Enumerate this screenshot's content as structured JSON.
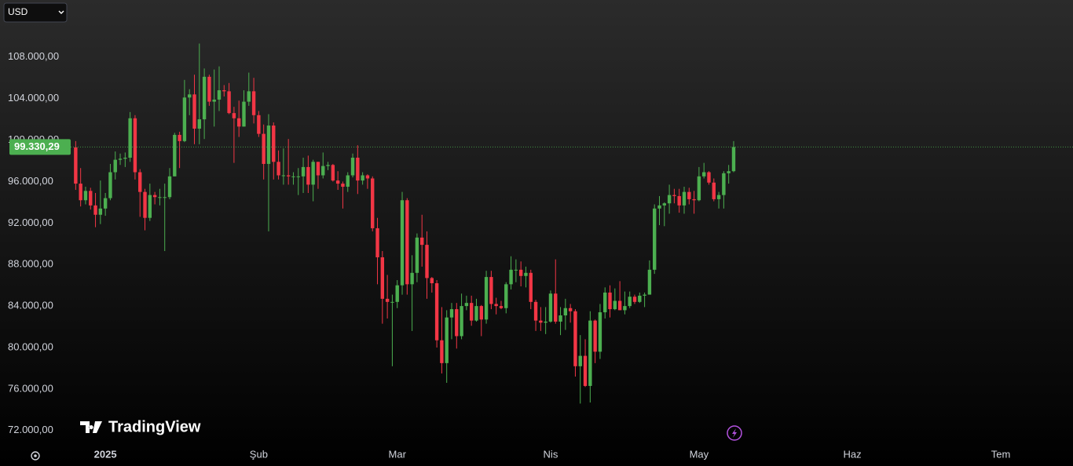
{
  "chart_data": {
    "type": "candlestick",
    "currency": "USD",
    "brand": "TradingView",
    "up_color": "#4caf50",
    "down_color": "#f23645",
    "xlim": [
      -21.3,
      195.6
    ],
    "xticks": [
      {
        "value": 0,
        "label": "2025"
      },
      {
        "value": 31,
        "label": "Şub"
      },
      {
        "value": 59,
        "label": "Mar"
      },
      {
        "value": 90,
        "label": "Nis"
      },
      {
        "value": 120,
        "label": "May"
      },
      {
        "value": 151,
        "label": "Haz"
      },
      {
        "value": 181,
        "label": "Tem"
      }
    ],
    "ylim": [
      70700,
      113500
    ],
    "yticks": [
      {
        "value": 72000,
        "label": "72.000,00"
      },
      {
        "value": 76000,
        "label": "76.000,00"
      },
      {
        "value": 80000,
        "label": "80.000,00"
      },
      {
        "value": 84000,
        "label": "84.000,00"
      },
      {
        "value": 88000,
        "label": "88.000,00"
      },
      {
        "value": 92000,
        "label": "92.000,00"
      },
      {
        "value": 96000,
        "label": "96.000,00"
      },
      {
        "value": 100000,
        "label": "100.000,00"
      },
      {
        "value": 104000,
        "label": "104.000,00"
      },
      {
        "value": 108000,
        "label": "108.000,00"
      }
    ],
    "last_price": 99330.29,
    "last_price_label": "99.330,29",
    "x": [
      -6,
      -5,
      -4,
      -3,
      -2,
      -1,
      0,
      1,
      2,
      3,
      4,
      5,
      6,
      7,
      8,
      9,
      10,
      11,
      12,
      13,
      14,
      15,
      16,
      17,
      18,
      19,
      20,
      21,
      22,
      23,
      24,
      25,
      26,
      27,
      28,
      29,
      30,
      31,
      32,
      33,
      34,
      35,
      36,
      37,
      38,
      39,
      40,
      41,
      42,
      43,
      44,
      45,
      46,
      47,
      48,
      49,
      50,
      51,
      52,
      53,
      54,
      55,
      56,
      57,
      58,
      59,
      60,
      61,
      62,
      63,
      64,
      65,
      66,
      67,
      68,
      69,
      70,
      71,
      72,
      73,
      74,
      75,
      76,
      77,
      78,
      79,
      80,
      81,
      82,
      83,
      84,
      85,
      86,
      87,
      88,
      89,
      90,
      91,
      92,
      93,
      94,
      95,
      96,
      97,
      98,
      99,
      100,
      101,
      102,
      103,
      104,
      105,
      106,
      107,
      108,
      109,
      110,
      111,
      112,
      113,
      114,
      115,
      116,
      117,
      118,
      119,
      120,
      121,
      122,
      123,
      124,
      125,
      126,
      127
    ],
    "ohlc": [
      [
        99300,
        99900,
        95200,
        95800
      ],
      [
        95800,
        97300,
        93600,
        94200
      ],
      [
        94200,
        95500,
        93800,
        95100
      ],
      [
        95100,
        95400,
        93300,
        93700
      ],
      [
        93700,
        94900,
        91600,
        92800
      ],
      [
        92800,
        96100,
        91900,
        93400
      ],
      [
        93400,
        94900,
        92700,
        94400
      ],
      [
        94400,
        97700,
        94200,
        96900
      ],
      [
        96900,
        98900,
        96200,
        98100
      ],
      [
        98100,
        98700,
        97600,
        98200
      ],
      [
        98200,
        98800,
        97400,
        98300
      ],
      [
        98300,
        102700,
        97900,
        102100
      ],
      [
        102100,
        102400,
        96200,
        96900
      ],
      [
        96900,
        97200,
        92600,
        95000
      ],
      [
        95000,
        95300,
        91300,
        92500
      ],
      [
        92500,
        95800,
        92200,
        94700
      ],
      [
        94700,
        95000,
        93800,
        94500
      ],
      [
        94500,
        95300,
        93700,
        94500
      ],
      [
        94500,
        95800,
        89300,
        94500
      ],
      [
        94500,
        97300,
        94300,
        96500
      ],
      [
        96500,
        100700,
        96500,
        100500
      ],
      [
        100500,
        100800,
        97300,
        99900
      ],
      [
        99900,
        105800,
        99800,
        104100
      ],
      [
        104100,
        104900,
        102400,
        104400
      ],
      [
        104400,
        106300,
        99600,
        101100
      ],
      [
        101100,
        109300,
        99600,
        102000
      ],
      [
        102000,
        106900,
        100100,
        106100
      ],
      [
        106100,
        106300,
        103300,
        103700
      ],
      [
        103700,
        106800,
        101300,
        103900
      ],
      [
        103900,
        107100,
        102800,
        104800
      ],
      [
        104800,
        105300,
        104200,
        104700
      ],
      [
        104700,
        105500,
        102500,
        102600
      ],
      [
        102600,
        103200,
        97800,
        102100
      ],
      [
        102100,
        103800,
        100300,
        101300
      ],
      [
        101300,
        104800,
        101300,
        103700
      ],
      [
        103700,
        106500,
        103300,
        104700
      ],
      [
        104700,
        106000,
        101600,
        102400
      ],
      [
        102400,
        102800,
        100300,
        100600
      ],
      [
        100600,
        101500,
        96200,
        97700
      ],
      [
        97700,
        102500,
        91200,
        101400
      ],
      [
        101400,
        101700,
        96200,
        97900
      ],
      [
        97900,
        99000,
        96200,
        96600
      ],
      [
        96600,
        99200,
        95700,
        96600
      ],
      [
        96600,
        100100,
        95700,
        96500
      ],
      [
        96500,
        96900,
        95700,
        96500
      ],
      [
        96500,
        97300,
        94700,
        96500
      ],
      [
        96500,
        98300,
        94900,
        97400
      ],
      [
        97400,
        98500,
        94900,
        95700
      ],
      [
        95700,
        98100,
        94100,
        97900
      ],
      [
        97900,
        97900,
        95300,
        96600
      ],
      [
        96600,
        98800,
        96300,
        97500
      ],
      [
        97500,
        97900,
        97100,
        97600
      ],
      [
        97600,
        97700,
        96000,
        96100
      ],
      [
        96100,
        97000,
        95200,
        95800
      ],
      [
        95800,
        96000,
        93400,
        95500
      ],
      [
        95500,
        96900,
        95000,
        96600
      ],
      [
        96600,
        98700,
        96400,
        98300
      ],
      [
        98300,
        99500,
        94800,
        96100
      ],
      [
        96100,
        96900,
        95700,
        96600
      ],
      [
        96600,
        96700,
        95300,
        96300
      ],
      [
        96300,
        96500,
        91200,
        91500
      ],
      [
        91500,
        92500,
        86100,
        88700
      ],
      [
        88700,
        89300,
        82300,
        84700
      ],
      [
        84700,
        87000,
        82800,
        84400
      ],
      [
        84400,
        85100,
        78200,
        84400
      ],
      [
        84400,
        86500,
        83800,
        86000
      ],
      [
        86000,
        95000,
        85100,
        94200
      ],
      [
        94200,
        94400,
        85100,
        86100
      ],
      [
        86100,
        88900,
        81600,
        87200
      ],
      [
        87200,
        91000,
        86300,
        90600
      ],
      [
        90600,
        92800,
        87800,
        89900
      ],
      [
        89900,
        91200,
        84700,
        86700
      ],
      [
        86700,
        86800,
        85300,
        86200
      ],
      [
        86200,
        86500,
        80000,
        80700
      ],
      [
        80700,
        83900,
        77500,
        78500
      ],
      [
        78500,
        83600,
        76600,
        82900
      ],
      [
        82900,
        84300,
        80800,
        83700
      ],
      [
        83700,
        84300,
        79900,
        81100
      ],
      [
        81100,
        85200,
        80800,
        84000
      ],
      [
        84000,
        85000,
        83600,
        84300
      ],
      [
        84300,
        85000,
        82100,
        82600
      ],
      [
        82600,
        84700,
        82500,
        84000
      ],
      [
        84000,
        84100,
        81100,
        82700
      ],
      [
        82700,
        87400,
        82300,
        86800
      ],
      [
        86800,
        87400,
        83700,
        84200
      ],
      [
        84200,
        84800,
        83200,
        84000
      ],
      [
        84000,
        84500,
        83700,
        83800
      ],
      [
        83800,
        86300,
        83300,
        86100
      ],
      [
        86100,
        88800,
        85600,
        87500
      ],
      [
        87500,
        88500,
        86300,
        87500
      ],
      [
        87500,
        88300,
        85900,
        86900
      ],
      [
        86900,
        87800,
        85800,
        87200
      ],
      [
        87200,
        87500,
        83700,
        84400
      ],
      [
        84400,
        84600,
        81600,
        82600
      ],
      [
        82600,
        83900,
        81600,
        82400
      ],
      [
        82400,
        83900,
        81300,
        82500
      ],
      [
        82500,
        85500,
        82400,
        85200
      ],
      [
        85200,
        88500,
        82300,
        82500
      ],
      [
        82500,
        83900,
        81200,
        83100
      ],
      [
        83100,
        84700,
        81700,
        83800
      ],
      [
        83800,
        84200,
        82400,
        83500
      ],
      [
        83500,
        83700,
        77200,
        78200
      ],
      [
        78200,
        81200,
        74600,
        79200
      ],
      [
        79200,
        80800,
        76200,
        76300
      ],
      [
        76300,
        83500,
        74700,
        82600
      ],
      [
        82600,
        82700,
        78500,
        79600
      ],
      [
        79600,
        84200,
        78900,
        83400
      ],
      [
        83400,
        85800,
        82800,
        85300
      ],
      [
        85300,
        86000,
        82900,
        83700
      ],
      [
        83700,
        85700,
        83600,
        84500
      ],
      [
        84500,
        86400,
        83600,
        83600
      ],
      [
        83600,
        85400,
        83200,
        84000
      ],
      [
        84000,
        85400,
        83800,
        84900
      ],
      [
        84900,
        85100,
        84200,
        84400
      ],
      [
        84400,
        85300,
        84300,
        85000
      ],
      [
        85000,
        85300,
        83900,
        85100
      ],
      [
        85100,
        88400,
        85100,
        87500
      ],
      [
        87500,
        93800,
        87100,
        93400
      ],
      [
        93400,
        94600,
        91800,
        93700
      ],
      [
        93700,
        94000,
        91700,
        93900
      ],
      [
        93900,
        95700,
        92900,
        94700
      ],
      [
        94700,
        95300,
        93900,
        94600
      ],
      [
        94600,
        95300,
        93000,
        93700
      ],
      [
        93700,
        95500,
        92900,
        95000
      ],
      [
        95000,
        95400,
        93800,
        94300
      ],
      [
        94300,
        95100,
        92900,
        94200
      ],
      [
        94200,
        97400,
        94100,
        96500
      ],
      [
        96500,
        97800,
        96300,
        96900
      ],
      [
        96900,
        97000,
        95700,
        95900
      ],
      [
        95900,
        96300,
        94100,
        94300
      ],
      [
        94300,
        95000,
        93400,
        94700
      ],
      [
        94700,
        97000,
        93400,
        96800
      ],
      [
        96800,
        97600,
        95800,
        97000
      ],
      [
        97000,
        99900,
        96900,
        99330.29
      ]
    ]
  }
}
